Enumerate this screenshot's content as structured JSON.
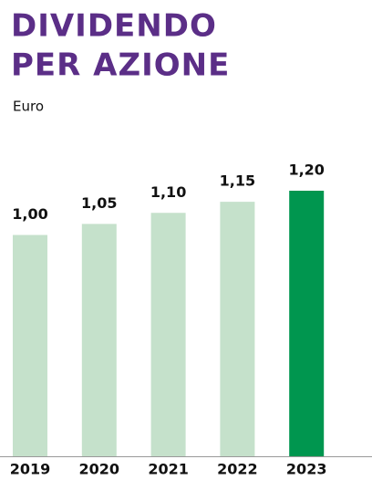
{
  "chart_data": {
    "type": "bar",
    "title": [
      "DIVIDENDO",
      "PER AZIONE"
    ],
    "subtitle": "Euro",
    "categories": [
      "2019",
      "2020",
      "2021",
      "2022",
      "2023"
    ],
    "values": [
      1.0,
      1.05,
      1.1,
      1.15,
      1.2
    ],
    "value_labels": [
      "1,00",
      "1,05",
      "1,10",
      "1,15",
      "1,20"
    ],
    "colors": [
      "#c5e1cb",
      "#c5e1cb",
      "#c5e1cb",
      "#c5e1cb",
      "#00964f"
    ]
  }
}
